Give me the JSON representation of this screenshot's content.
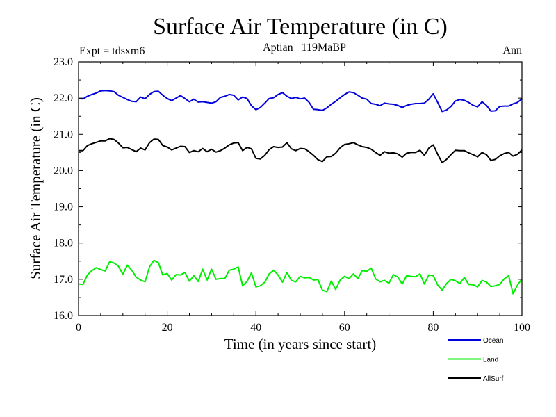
{
  "chart_data": {
    "type": "line",
    "title": "Surface Air Temperature (in C)",
    "subtitle": "Aptian   119MaBP",
    "expt_label": "Expt = tdsxm6",
    "period_label": "Ann",
    "xlabel": "Time (in years since start)",
    "ylabel": "Surface Air Temperature (in C)",
    "xlim": [
      0,
      100
    ],
    "ylim": [
      16.0,
      23.0
    ],
    "x_ticks": [
      0,
      20,
      40,
      60,
      80,
      100
    ],
    "x_tick_labels": [
      "0",
      "20",
      "40",
      "60",
      "80",
      "100"
    ],
    "y_ticks": [
      16.0,
      17.0,
      18.0,
      19.0,
      20.0,
      21.0,
      22.0,
      23.0
    ],
    "y_tick_labels": [
      "16.0",
      "17.0",
      "18.0",
      "19.0",
      "20.0",
      "21.0",
      "22.0",
      "23.0"
    ],
    "grid": false,
    "legend_position": "bottom-right",
    "x": [
      0,
      1,
      2,
      3,
      4,
      5,
      6,
      7,
      8,
      9,
      10,
      11,
      12,
      13,
      14,
      15,
      16,
      17,
      18,
      19,
      20,
      21,
      22,
      23,
      24,
      25,
      26,
      27,
      28,
      29,
      30,
      31,
      32,
      33,
      34,
      35,
      36,
      37,
      38,
      39,
      40,
      41,
      42,
      43,
      44,
      45,
      46,
      47,
      48,
      49,
      50,
      51,
      52,
      53,
      54,
      55,
      56,
      57,
      58,
      59,
      60,
      61,
      62,
      63,
      64,
      65,
      66,
      67,
      68,
      69,
      70,
      71,
      72,
      73,
      74,
      75,
      76,
      77,
      78,
      79,
      80,
      81,
      82,
      83,
      84,
      85,
      86,
      87,
      88,
      89,
      90,
      91,
      92,
      93,
      94,
      95,
      96,
      97,
      98,
      99,
      100
    ],
    "series": [
      {
        "name": "Ocean",
        "color": "#0000dd",
        "values": [
          21.99,
          21.98,
          22.05,
          22.1,
          22.14,
          22.2,
          22.21,
          22.2,
          22.18,
          22.08,
          22.02,
          21.96,
          21.91,
          21.9,
          22.03,
          21.98,
          22.1,
          22.18,
          22.19,
          22.08,
          21.99,
          21.93,
          22.0,
          22.07,
          21.99,
          21.9,
          21.97,
          21.89,
          21.9,
          21.88,
          21.86,
          21.9,
          22.02,
          22.05,
          22.1,
          22.08,
          21.95,
          22.03,
          21.99,
          21.79,
          21.68,
          21.74,
          21.86,
          21.99,
          22.01,
          22.1,
          22.15,
          22.05,
          21.99,
          22.02,
          21.98,
          22.0,
          21.88,
          21.69,
          21.68,
          21.66,
          21.73,
          21.83,
          21.91,
          22.01,
          22.1,
          22.17,
          22.15,
          22.08,
          22.0,
          21.97,
          21.85,
          21.83,
          21.79,
          21.86,
          21.84,
          21.83,
          21.8,
          21.74,
          21.8,
          21.83,
          21.85,
          21.85,
          21.86,
          21.97,
          22.12,
          21.88,
          21.63,
          21.67,
          21.77,
          21.92,
          21.96,
          21.94,
          21.88,
          21.8,
          21.76,
          21.9,
          21.8,
          21.64,
          21.65,
          21.77,
          21.78,
          21.78,
          21.84,
          21.88,
          21.98
        ]
      },
      {
        "name": "Land",
        "color": "#00ee00",
        "values": [
          16.87,
          16.86,
          17.12,
          17.24,
          17.32,
          17.27,
          17.23,
          17.48,
          17.45,
          17.36,
          17.14,
          17.39,
          17.25,
          17.06,
          16.98,
          16.93,
          17.34,
          17.52,
          17.46,
          17.12,
          17.16,
          16.98,
          17.13,
          17.12,
          17.19,
          16.95,
          17.1,
          16.94,
          17.28,
          16.98,
          17.28,
          17.0,
          17.02,
          17.02,
          17.25,
          17.28,
          17.34,
          16.82,
          16.94,
          17.18,
          16.79,
          16.82,
          16.92,
          17.15,
          17.25,
          17.12,
          16.92,
          17.19,
          16.97,
          16.93,
          17.08,
          17.04,
          17.05,
          16.98,
          16.99,
          16.7,
          16.66,
          16.95,
          16.72,
          16.98,
          17.08,
          17.02,
          17.15,
          17.02,
          17.24,
          17.22,
          17.31,
          17.01,
          16.93,
          16.97,
          16.89,
          17.13,
          17.06,
          16.87,
          17.1,
          17.08,
          17.07,
          17.15,
          16.87,
          17.12,
          17.1,
          16.84,
          16.7,
          16.88,
          17.0,
          16.96,
          16.88,
          17.05,
          16.86,
          16.85,
          16.79,
          16.97,
          16.92,
          16.8,
          16.82,
          16.86,
          17.01,
          17.1,
          16.6,
          16.84,
          17.01
        ]
      },
      {
        "name": "AllSurf",
        "color": "#000000",
        "values": [
          20.55,
          20.55,
          20.69,
          20.74,
          20.78,
          20.82,
          20.82,
          20.88,
          20.86,
          20.76,
          20.63,
          20.64,
          20.58,
          20.52,
          20.62,
          20.57,
          20.77,
          20.87,
          20.86,
          20.69,
          20.65,
          20.57,
          20.62,
          20.67,
          20.66,
          20.5,
          20.55,
          20.52,
          20.61,
          20.52,
          20.59,
          20.51,
          20.55,
          20.62,
          20.71,
          20.76,
          20.77,
          20.55,
          20.64,
          20.6,
          20.34,
          20.32,
          20.42,
          20.58,
          20.66,
          20.64,
          20.65,
          20.77,
          20.6,
          20.55,
          20.61,
          20.6,
          20.52,
          20.42,
          20.3,
          20.25,
          20.38,
          20.39,
          20.48,
          20.63,
          20.72,
          20.74,
          20.77,
          20.71,
          20.66,
          20.64,
          20.59,
          20.5,
          20.42,
          20.52,
          20.48,
          20.49,
          20.46,
          20.37,
          20.48,
          20.5,
          20.5,
          20.56,
          20.42,
          20.62,
          20.71,
          20.45,
          20.22,
          20.31,
          20.44,
          20.56,
          20.55,
          20.55,
          20.49,
          20.44,
          20.38,
          20.5,
          20.44,
          20.28,
          20.31,
          20.41,
          20.47,
          20.5,
          20.4,
          20.45,
          20.57
        ]
      }
    ]
  }
}
